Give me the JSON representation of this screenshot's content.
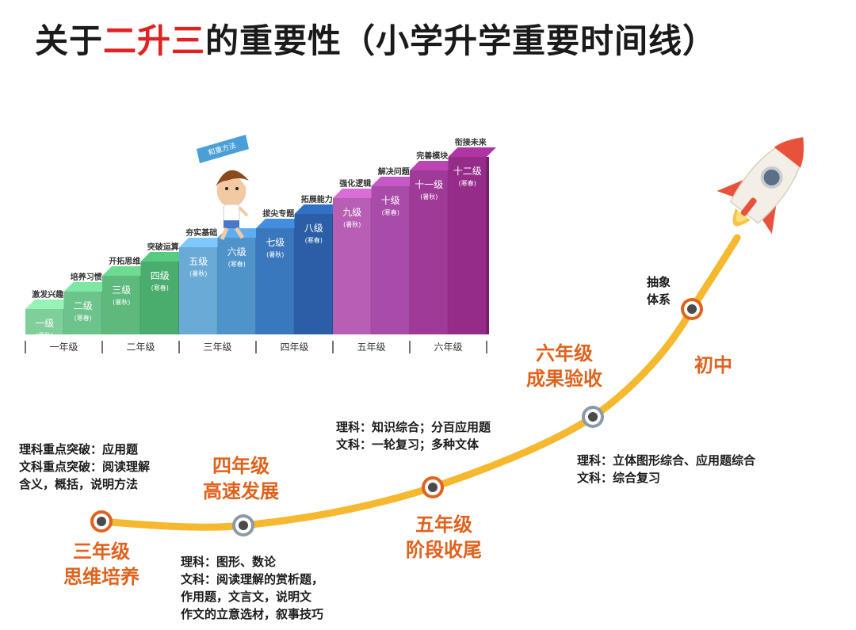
{
  "title": {
    "prefix": "关于",
    "highlight": "二升三",
    "suffix": "的重要性（小学升学重要时间线）"
  },
  "staircase": {
    "banner": "和重方法",
    "steps": [
      {
        "tag": "激发兴趣",
        "grade": "一级",
        "term": "(暑秋)",
        "color": "#7fcf9a"
      },
      {
        "tag": "培养习惯",
        "grade": "二级",
        "term": "(寒春)",
        "color": "#6cc48b"
      },
      {
        "tag": "开拓思维",
        "grade": "三级",
        "term": "(暑秋)",
        "color": "#5db97c"
      },
      {
        "tag": "突破运算",
        "grade": "四级",
        "term": "(寒春)",
        "color": "#4aad6d"
      },
      {
        "tag": "夯实基础",
        "grade": "五级",
        "term": "(暑秋)",
        "color": "#6aaad6"
      },
      {
        "tag": "",
        "grade": "六级",
        "term": "(寒春)",
        "color": "#4f93cb"
      },
      {
        "tag": "拔尖专题",
        "grade": "七级",
        "term": "(暑秋)",
        "color": "#3a78bd"
      },
      {
        "tag": "拓展能力",
        "grade": "八级",
        "term": "(寒春)",
        "color": "#2a5fa8"
      },
      {
        "tag": "强化逻辑",
        "grade": "九级",
        "term": "(暑秋)",
        "color": "#b85eb5"
      },
      {
        "tag": "解决问题",
        "grade": "十级",
        "term": "(寒春)",
        "color": "#a94ba8"
      },
      {
        "tag": "完善模块",
        "grade": "十一级",
        "term": "(暑秋)",
        "color": "#a03a98"
      },
      {
        "tag": "衔接未来",
        "grade": "十二级",
        "term": "(寒春)",
        "color": "#952c8a"
      }
    ],
    "years": [
      "一年级",
      "二年级",
      "三年级",
      "四年级",
      "五年级",
      "六年级"
    ]
  },
  "timeline": {
    "stages": [
      {
        "title1": "三年级",
        "title2": "思维培养"
      },
      {
        "title1": "四年级",
        "title2": "高速发展"
      },
      {
        "title1": "五年级",
        "title2": "阶段收尾"
      },
      {
        "title1": "六年级",
        "title2": "成果验收"
      },
      {
        "title1": "初中",
        "title2": ""
      }
    ],
    "notes": {
      "grade3": [
        "理科重点突破：应用题",
        "文科重点突破：阅读理解",
        "含义，概括，说明方法"
      ],
      "grade4": [
        "理科：图形、数论",
        "文科：阅读理解的赏析题，",
        "作用题，文言文，说明文",
        "作文的立意选材，叙事技巧"
      ],
      "grade5": [
        "理科：知识综合；分百应用题",
        "文科：一轮复习；多种文体"
      ],
      "grade6": [
        "理科：立体图形综合、应用题综合",
        "文科：综合复习"
      ],
      "junior": [
        "抽象",
        "体系"
      ]
    }
  },
  "colors": {
    "title_highlight": "#e02222",
    "stage_title": "#e0621c",
    "curve": "#f5b82e",
    "node_orange": "#e0621c",
    "node_gray": "#8a9aa8",
    "rocket_red": "#e8523a"
  },
  "icons": [
    "student-figure-icon",
    "rocket-icon"
  ]
}
